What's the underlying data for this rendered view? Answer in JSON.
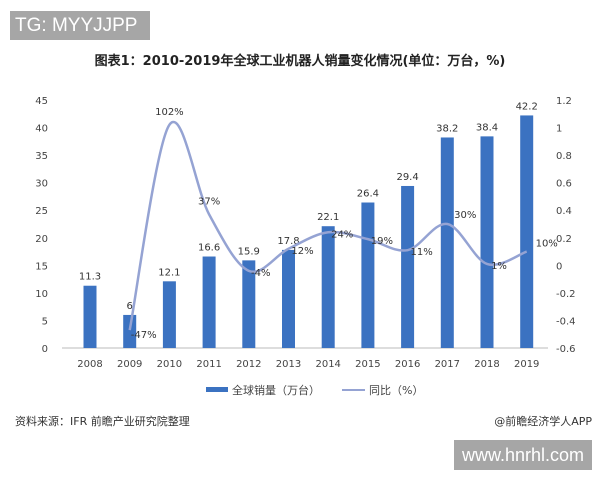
{
  "watermark_top": "TG: MYYJJPP",
  "watermark_bottom": "www.hnrhl.com",
  "source": "资料来源：IFR 前瞻产业研究院整理",
  "brand": "@前瞻经济学人APP",
  "chart_data": {
    "type": "bar+line",
    "title": "图表1：2010-2019年全球工业机器人销量变化情况(单位：万台，%)",
    "categories": [
      "2008",
      "2009",
      "2010",
      "2011",
      "2012",
      "2013",
      "2014",
      "2015",
      "2016",
      "2017",
      "2018",
      "2019"
    ],
    "series": [
      {
        "name": "全球销量（万台）",
        "type": "bar",
        "axis": "left",
        "color": "#3b72c1",
        "values": [
          11.3,
          6,
          12.1,
          16.6,
          15.9,
          17.8,
          22.1,
          26.4,
          29.4,
          38.2,
          38.4,
          42.2
        ],
        "labels": [
          "11.3",
          "6",
          "12.1",
          "16.6",
          "15.9",
          "17.8",
          "22.1",
          "26.4",
          "29.4",
          "38.2",
          "38.4",
          "42.2"
        ]
      },
      {
        "name": "同比（%）",
        "type": "line",
        "axis": "right",
        "color": "#95a3d3",
        "values": [
          null,
          -0.47,
          1.02,
          0.37,
          -0.04,
          0.12,
          0.24,
          0.19,
          0.11,
          0.3,
          0.01,
          0.1
        ],
        "labels": [
          null,
          "-47%",
          "102%",
          "37%",
          "-4%",
          "12%",
          "24%",
          "19%",
          "11%",
          "30%",
          "1%",
          "10%"
        ]
      }
    ],
    "y_left": {
      "ylim": [
        0,
        45
      ],
      "ticks": [
        "0",
        "5",
        "10",
        "15",
        "20",
        "25",
        "30",
        "35",
        "40",
        "45"
      ]
    },
    "y_right": {
      "ylim": [
        -0.6,
        1.2
      ],
      "ticks": [
        "-0.6",
        "-0.4",
        "-0.2",
        "0",
        "0.2",
        "0.4",
        "0.6",
        "0.8",
        "1",
        "1.2"
      ]
    },
    "legend": "bottom",
    "grid": false
  }
}
